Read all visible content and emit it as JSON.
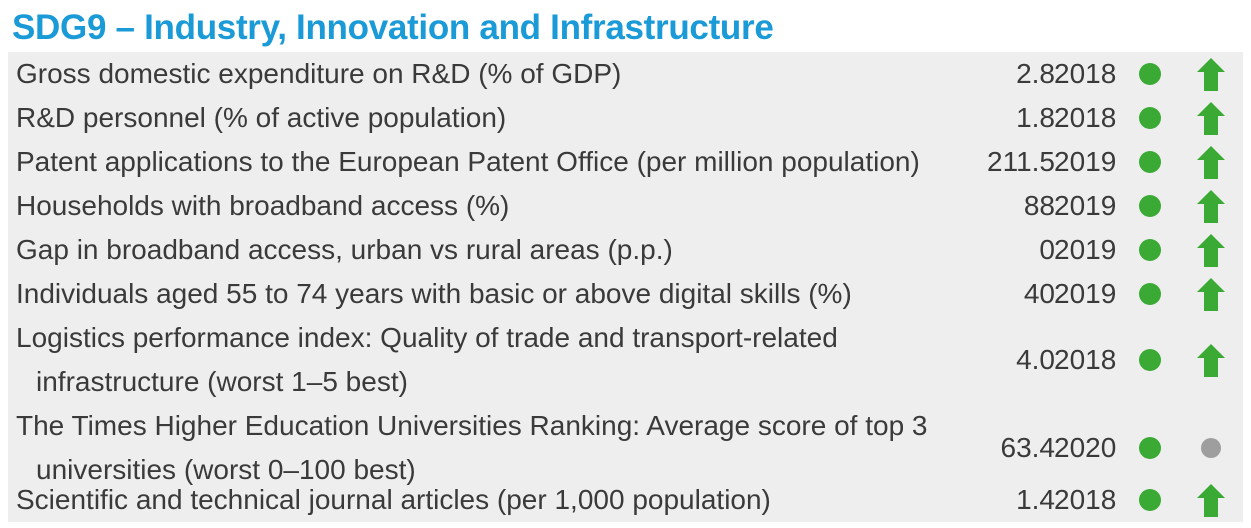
{
  "title": "SDG9 – Industry, Innovation and Infrastructure",
  "colors": {
    "title": "#1a9ad6",
    "panel_bg": "#eeeeee",
    "status_green": "#3aaa35",
    "trend_green": "#3aaa35",
    "trend_grey": "#9e9e9e"
  },
  "rows": [
    {
      "label": "Gross domestic expenditure on R&D (% of GDP)",
      "value": "2.8",
      "year": "2018",
      "status": "green",
      "trend": "arrow-up-icon"
    },
    {
      "label": "R&D personnel (% of active population)",
      "value": "1.8",
      "year": "2018",
      "status": "green",
      "trend": "arrow-up-icon"
    },
    {
      "label": "Patent applications to the European Patent Office (per million population)",
      "value": "211.5",
      "year": "2019",
      "status": "green",
      "trend": "arrow-up-icon"
    },
    {
      "label": "Households with broadband access (%)",
      "value": "88",
      "year": "2019",
      "status": "green",
      "trend": "arrow-up-icon"
    },
    {
      "label": "Gap in broadband access, urban vs rural areas (p.p.)",
      "value": "0",
      "year": "2019",
      "status": "green",
      "trend": "arrow-up-icon"
    },
    {
      "label": "Individuals aged 55 to 74 years with basic or above digital skills (%)",
      "value": "40",
      "year": "2019",
      "status": "green",
      "trend": "arrow-up-icon"
    },
    {
      "label": "Logistics performance index: Quality of trade and transport-related",
      "label2": "infrastructure (worst 1–5 best)",
      "value": "4.0",
      "year": "2018",
      "status": "green",
      "trend": "arrow-up-icon"
    },
    {
      "label": "The Times Higher Education Universities Ranking: Average score of top 3",
      "label2": "universities (worst 0–100 best)",
      "value": "63.4",
      "year": "2020",
      "status": "green",
      "trend": "grey-dot-icon"
    },
    {
      "label": "Scientific and technical journal articles (per 1,000 population)",
      "value": "1.4",
      "year": "2018",
      "status": "green",
      "trend": "arrow-up-icon"
    }
  ]
}
